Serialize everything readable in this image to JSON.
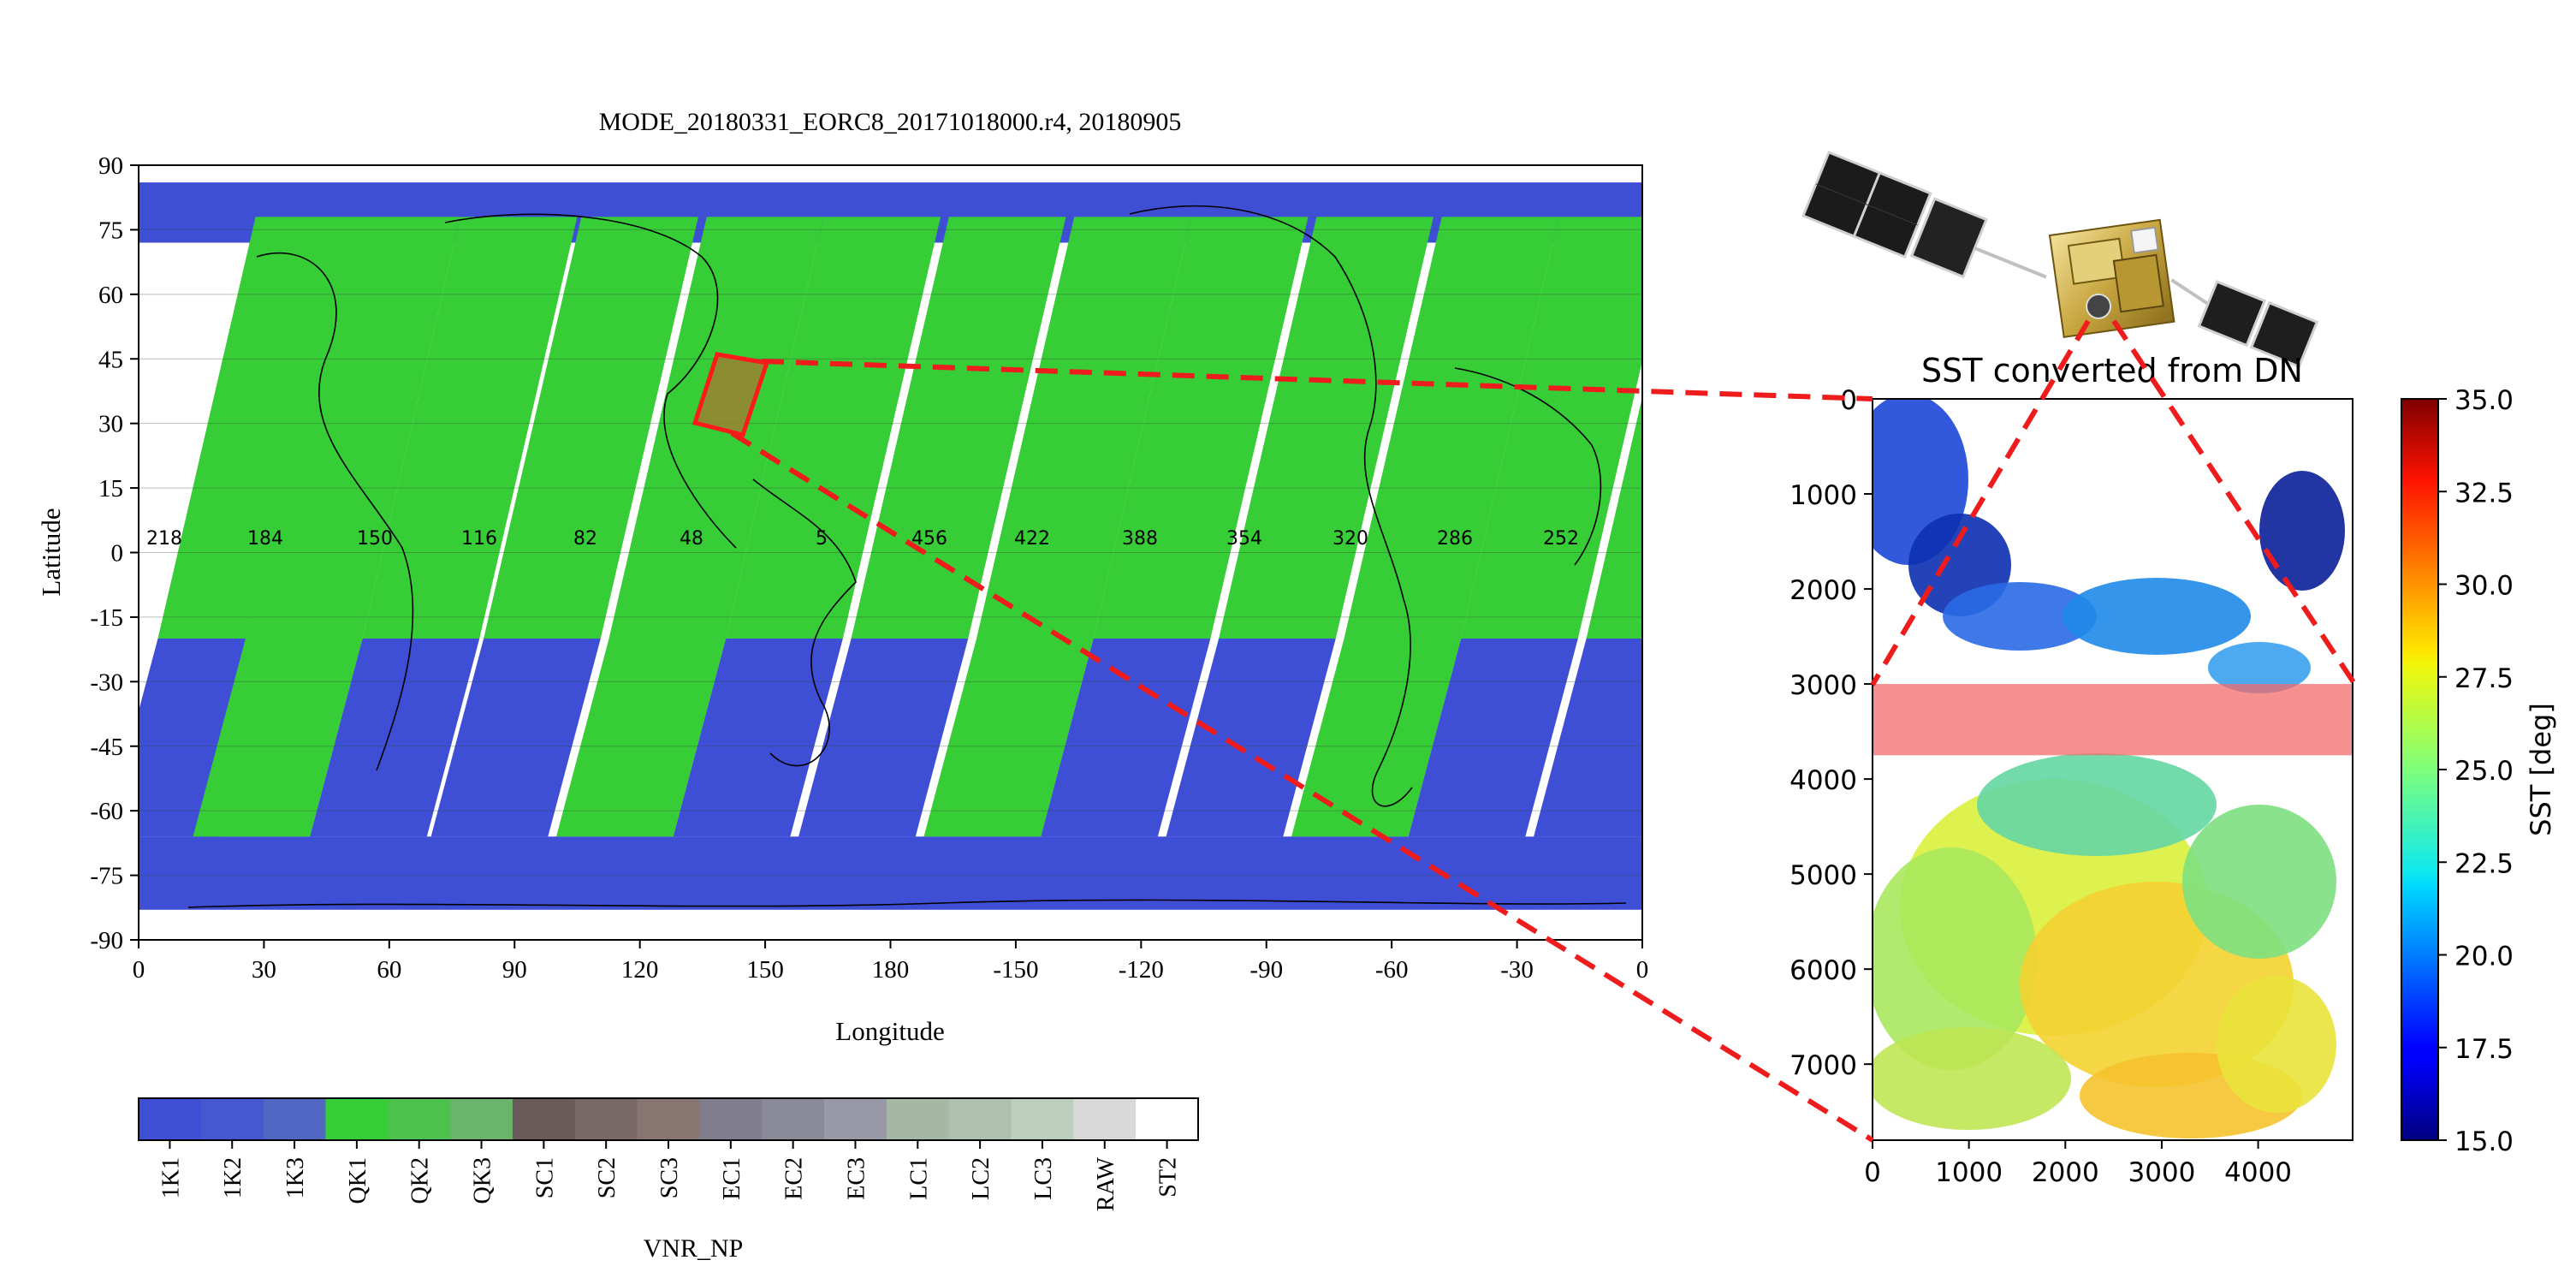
{
  "map": {
    "title": "MODE_20180331_EORC8_20171018000.r4, 20180905",
    "xlabel": "Longitude",
    "ylabel": "Latitude",
    "x_ticks": [
      "0",
      "30",
      "60",
      "90",
      "120",
      "150",
      "180",
      "-150",
      "-120",
      "-90",
      "-60",
      "-30",
      "0"
    ],
    "y_ticks": [
      "90",
      "75",
      "60",
      "45",
      "30",
      "15",
      "0",
      "-15",
      "-30",
      "-45",
      "-60",
      "-75",
      "-90"
    ],
    "path_labels": [
      "218",
      "184",
      "150",
      "116",
      "82",
      "48",
      "5",
      "456",
      "422",
      "388",
      "354",
      "320",
      "286",
      "252"
    ],
    "highlight_box_color": "#ff1a1a"
  },
  "legend": {
    "title": "VNR_NP",
    "items": [
      {
        "label": "1K1",
        "color": "#3e4fd6"
      },
      {
        "label": "1K2",
        "color": "#4558cf"
      },
      {
        "label": "1K3",
        "color": "#5266c4"
      },
      {
        "label": "QK1",
        "color": "#37cd37"
      },
      {
        "label": "QK2",
        "color": "#4cc24c"
      },
      {
        "label": "QK3",
        "color": "#6bb46b"
      },
      {
        "label": "SC1",
        "color": "#6a5a5a"
      },
      {
        "label": "SC2",
        "color": "#786868"
      },
      {
        "label": "SC3",
        "color": "#887470"
      },
      {
        "label": "EC1",
        "color": "#7f7d8e"
      },
      {
        "label": "EC2",
        "color": "#8b8a99"
      },
      {
        "label": "EC3",
        "color": "#9898a6"
      },
      {
        "label": "LC1",
        "color": "#a4b8a4"
      },
      {
        "label": "LC2",
        "color": "#aec0ae"
      },
      {
        "label": "LC3",
        "color": "#bccebc"
      },
      {
        "label": "RAW",
        "color": "#d9d9d9"
      },
      {
        "label": "ST2",
        "color": "#ffffff"
      }
    ]
  },
  "sst": {
    "title": "SST converted from DN",
    "y_ticks": [
      "0",
      "1000",
      "2000",
      "3000",
      "4000",
      "5000",
      "6000",
      "7000"
    ],
    "x_ticks": [
      "0",
      "1000",
      "2000",
      "3000",
      "4000"
    ],
    "colorbar_label": "SST [deg]",
    "colorbar_ticks": [
      "35.0",
      "32.5",
      "30.0",
      "27.5",
      "25.0",
      "22.5",
      "20.0",
      "17.5",
      "15.0"
    ],
    "highlight_band_color": "#f26b6b"
  },
  "chart_data": [
    {
      "type": "heatmap",
      "title": "MODE_20180331_EORC8_20171018000.r4, 20180905",
      "xlabel": "Longitude",
      "ylabel": "Latitude",
      "xlim": [
        0,
        360
      ],
      "ylim": [
        -90,
        90
      ],
      "x_tick_labels": [
        "0",
        "30",
        "60",
        "90",
        "120",
        "150",
        "180",
        "-150",
        "-120",
        "-90",
        "-60",
        "-30",
        "0"
      ],
      "y_tick_labels": [
        "90",
        "75",
        "60",
        "45",
        "30",
        "15",
        "0",
        "-15",
        "-30",
        "-45",
        "-60",
        "-75",
        "-90"
      ],
      "categories": [
        "1K1",
        "1K2",
        "1K3",
        "QK1",
        "QK2",
        "QK3",
        "SC1",
        "SC2",
        "SC3",
        "EC1",
        "EC2",
        "EC3",
        "LC1",
        "LC2",
        "LC3",
        "RAW",
        "ST2"
      ],
      "legend_title": "VNR_NP",
      "path_numbers": [
        218,
        184,
        150,
        116,
        82,
        48,
        5,
        456,
        422,
        388,
        354,
        320,
        286,
        252
      ]
    },
    {
      "type": "heatmap",
      "title": "SST converted from DN",
      "xlim": [
        0,
        4980
      ],
      "ylim": [
        7800,
        0
      ],
      "colorbar_label": "SST [deg]",
      "colorbar_range": [
        15.0,
        35.0
      ],
      "highlight_rows": [
        3000,
        3750
      ]
    }
  ]
}
